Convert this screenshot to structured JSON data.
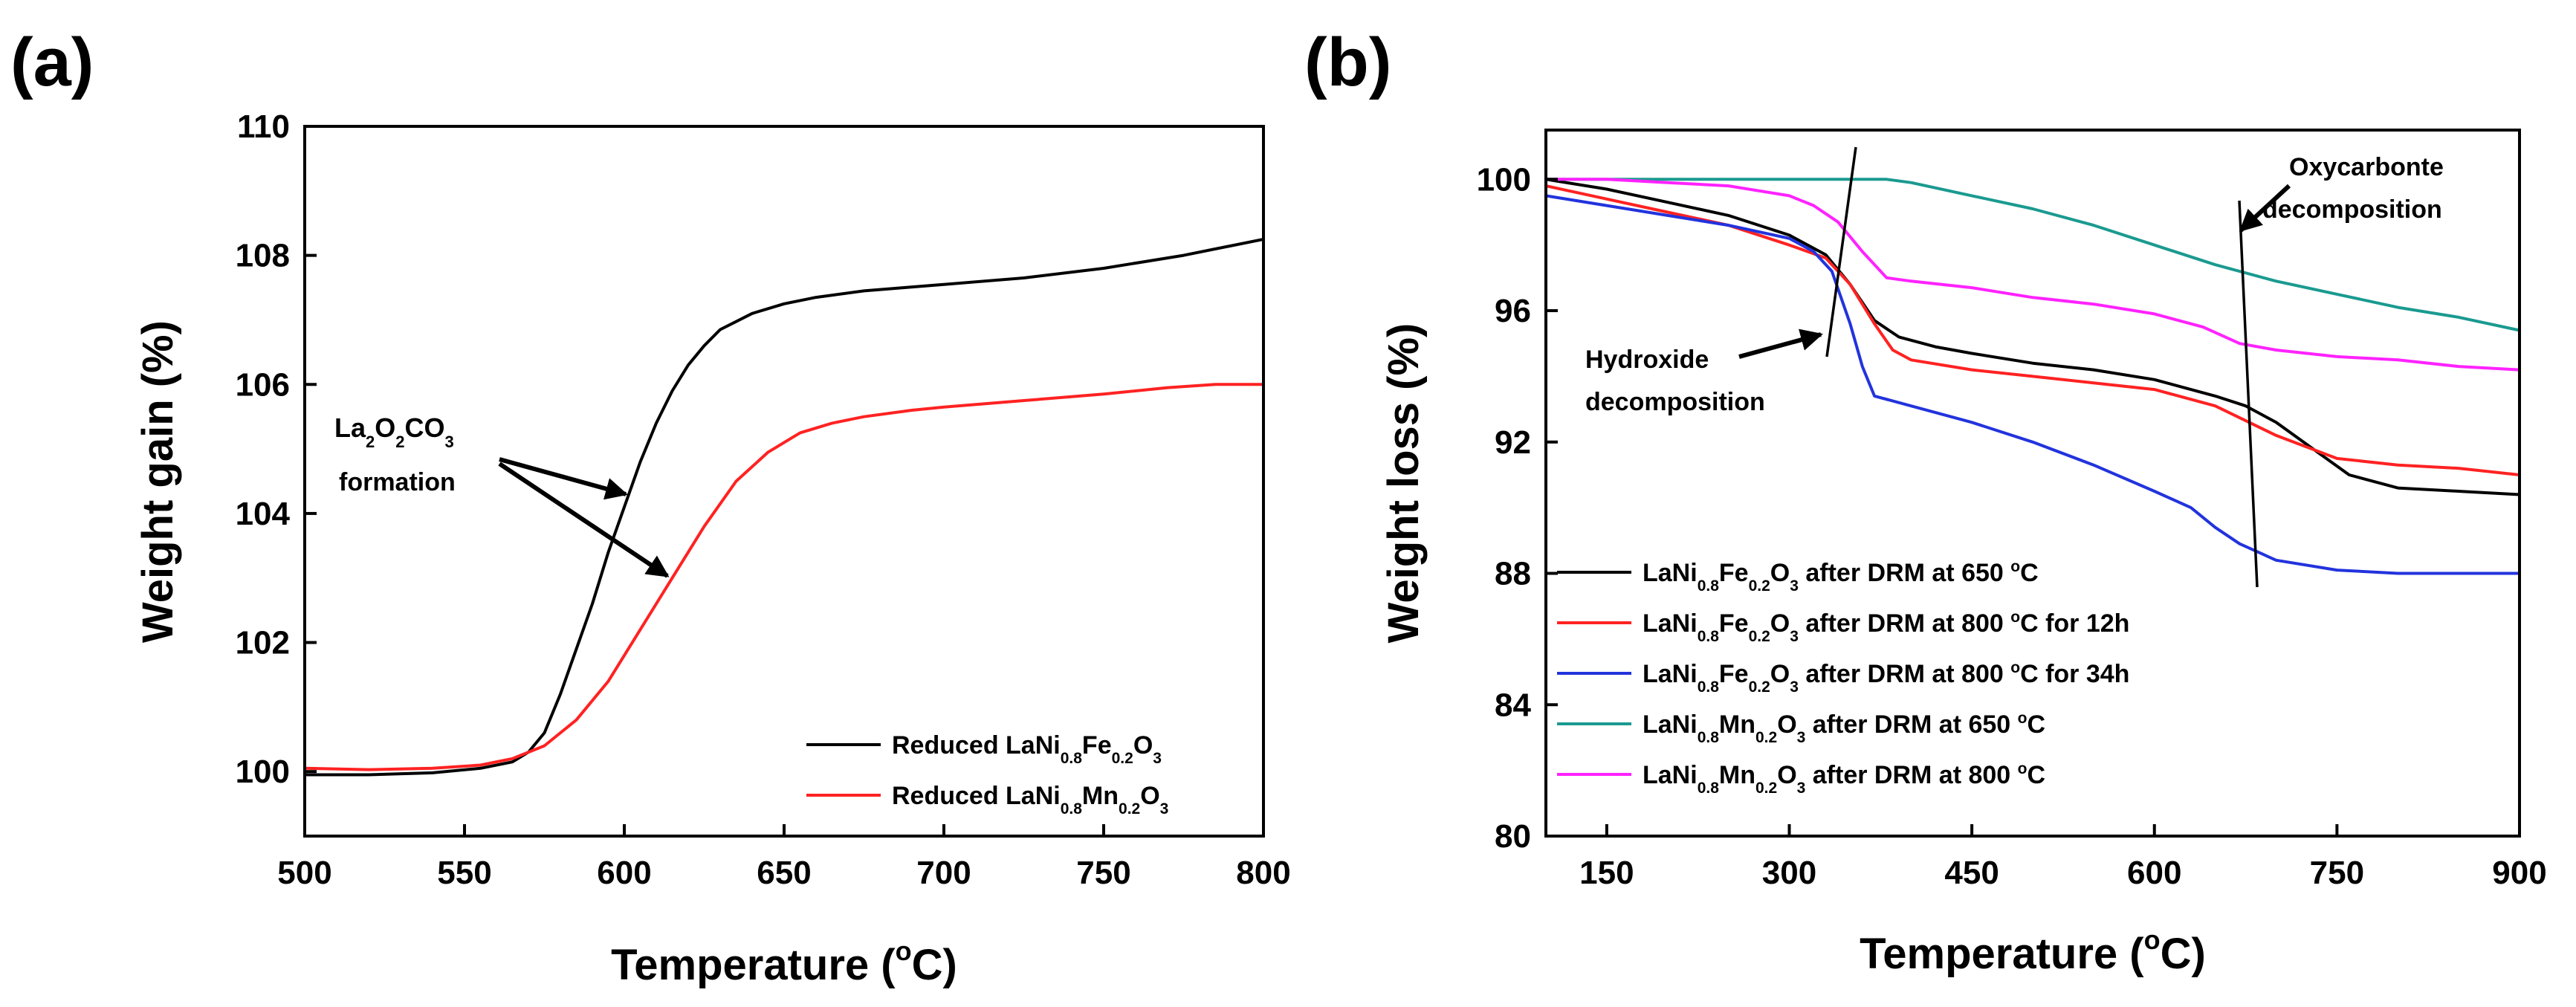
{
  "chart_data": [
    {
      "panel": "(a)",
      "type": "line",
      "xlabel": "Temperature (°C)",
      "xlabel_parts": {
        "pre": "Temperature (",
        "sup": "o",
        "post": "C)"
      },
      "ylabel": "Weight gain (%)",
      "xlim": [
        500,
        800
      ],
      "ylim": [
        99,
        110
      ],
      "xticks": [
        500,
        550,
        600,
        650,
        700,
        750,
        800
      ],
      "yticks": [
        100,
        102,
        104,
        106,
        108,
        110
      ],
      "legend_position": "bottom-right",
      "series": [
        {
          "name": "Reduced LaNi0.8Fe0.2O3",
          "label_parts": [
            {
              "t": "Reduced LaNi"
            },
            {
              "s": "0.8"
            },
            {
              "t": "Fe"
            },
            {
              "s": "0.2"
            },
            {
              "t": "O"
            },
            {
              "s": "3"
            }
          ],
          "color": "#000000",
          "x": [
            500,
            520,
            540,
            555,
            565,
            570,
            575,
            580,
            585,
            590,
            595,
            600,
            605,
            610,
            615,
            620,
            625,
            630,
            640,
            650,
            660,
            675,
            700,
            725,
            750,
            775,
            800
          ],
          "y": [
            99.95,
            99.95,
            99.98,
            100.05,
            100.15,
            100.3,
            100.6,
            101.2,
            101.9,
            102.6,
            103.4,
            104.1,
            104.8,
            105.4,
            105.9,
            106.3,
            106.6,
            106.85,
            107.1,
            107.25,
            107.35,
            107.45,
            107.55,
            107.65,
            107.8,
            108.0,
            108.25
          ]
        },
        {
          "name": "Reduced LaNi0.8Mn0.2O3",
          "label_parts": [
            {
              "t": "Reduced LaNi"
            },
            {
              "s": "0.8"
            },
            {
              "t": "Mn"
            },
            {
              "s": "0.2"
            },
            {
              "t": "O"
            },
            {
              "s": "3"
            }
          ],
          "color": "#ff2222",
          "x": [
            500,
            520,
            540,
            555,
            565,
            575,
            585,
            595,
            605,
            615,
            625,
            635,
            645,
            655,
            665,
            675,
            690,
            700,
            725,
            750,
            770,
            785,
            800
          ],
          "y": [
            100.05,
            100.03,
            100.05,
            100.1,
            100.2,
            100.4,
            100.8,
            101.4,
            102.2,
            103.0,
            103.8,
            104.5,
            104.95,
            105.25,
            105.4,
            105.5,
            105.6,
            105.65,
            105.75,
            105.85,
            105.95,
            106.0,
            106.0
          ]
        }
      ],
      "annotations": [
        {
          "text_parts": [
            {
              "t": "La"
            },
            {
              "s": "2"
            },
            {
              "t": "O"
            },
            {
              "s": "2"
            },
            {
              "t": "CO"
            },
            {
              "s": "3"
            }
          ],
          "text": "La2O2CO3"
        },
        {
          "text": "formation"
        }
      ]
    },
    {
      "panel": "(b)",
      "type": "line",
      "xlabel": "Temperature (°C)",
      "xlabel_parts": {
        "pre": "Temperature (",
        "sup": "o",
        "post": "C)"
      },
      "ylabel": "Weight loss (%)",
      "xlim": [
        100,
        900
      ],
      "ylim": [
        80,
        101.5
      ],
      "xticks": [
        150,
        300,
        450,
        600,
        750,
        900
      ],
      "yticks": [
        80,
        84,
        88,
        92,
        96,
        100
      ],
      "legend_position": "bottom-left",
      "series": [
        {
          "name": "LaNi0.8Fe0.2O3 after DRM at 650 °C",
          "label_parts": [
            {
              "t": "LaNi"
            },
            {
              "s": "0.8"
            },
            {
              "t": "Fe"
            },
            {
              "s": "0.2"
            },
            {
              "t": "O"
            },
            {
              "s": "3"
            },
            {
              "t": " after DRM at 650 "
            },
            {
              "u": "o"
            },
            {
              "t": "C"
            }
          ],
          "color": "#000000",
          "x": [
            100,
            150,
            200,
            250,
            300,
            330,
            350,
            370,
            390,
            420,
            450,
            500,
            550,
            600,
            650,
            675,
            700,
            730,
            760,
            800,
            850,
            900
          ],
          "y": [
            100,
            99.7,
            99.3,
            98.9,
            98.3,
            97.7,
            96.8,
            95.7,
            95.2,
            94.9,
            94.7,
            94.4,
            94.2,
            93.9,
            93.4,
            93.1,
            92.6,
            91.8,
            91.0,
            90.6,
            90.5,
            90.4
          ]
        },
        {
          "name": "LaNi0.8Fe0.2O3 after DRM at 800 °C for 12h",
          "label_parts": [
            {
              "t": "LaNi"
            },
            {
              "s": "0.8"
            },
            {
              "t": "Fe"
            },
            {
              "s": "0.2"
            },
            {
              "t": "O"
            },
            {
              "s": "3"
            },
            {
              "t": " after DRM at 800 "
            },
            {
              "u": "o"
            },
            {
              "t": "C for 12h"
            }
          ],
          "color": "#ff2222",
          "x": [
            100,
            150,
            200,
            250,
            300,
            330,
            350,
            370,
            385,
            400,
            450,
            500,
            550,
            600,
            650,
            700,
            750,
            800,
            850,
            900
          ],
          "y": [
            99.8,
            99.4,
            99.0,
            98.6,
            98.0,
            97.6,
            96.8,
            95.6,
            94.8,
            94.5,
            94.2,
            94.0,
            93.8,
            93.6,
            93.1,
            92.2,
            91.5,
            91.3,
            91.2,
            91.0
          ]
        },
        {
          "name": "LaNi0.8Fe0.2O3 after DRM at 800 °C for 34h",
          "label_parts": [
            {
              "t": "LaNi"
            },
            {
              "s": "0.8"
            },
            {
              "t": "Fe"
            },
            {
              "s": "0.2"
            },
            {
              "t": "O"
            },
            {
              "s": "3"
            },
            {
              "t": " after DRM at 800 "
            },
            {
              "u": "o"
            },
            {
              "t": "C for 34h"
            }
          ],
          "color": "#2233dd",
          "x": [
            100,
            150,
            200,
            250,
            300,
            320,
            335,
            350,
            360,
            370,
            400,
            450,
            500,
            550,
            600,
            630,
            650,
            670,
            700,
            750,
            800,
            850,
            900
          ],
          "y": [
            99.5,
            99.2,
            98.9,
            98.6,
            98.2,
            97.8,
            97.2,
            95.6,
            94.3,
            93.4,
            93.1,
            92.6,
            92.0,
            91.3,
            90.5,
            90.0,
            89.4,
            88.9,
            88.4,
            88.1,
            88.0,
            88.0,
            88.0
          ]
        },
        {
          "name": "LaNi0.8Mn0.2O3 after DRM at 650 °C",
          "label_parts": [
            {
              "t": "LaNi"
            },
            {
              "s": "0.8"
            },
            {
              "t": "Mn"
            },
            {
              "s": "0.2"
            },
            {
              "t": "O"
            },
            {
              "s": "3"
            },
            {
              "t": " after DRM at 650 "
            },
            {
              "u": "o"
            },
            {
              "t": "C"
            }
          ],
          "color": "#1a9a90",
          "x": [
            100,
            200,
            300,
            350,
            380,
            400,
            450,
            500,
            550,
            600,
            650,
            700,
            750,
            800,
            850,
            900
          ],
          "y": [
            100,
            100,
            100,
            100,
            100,
            99.9,
            99.5,
            99.1,
            98.6,
            98.0,
            97.4,
            96.9,
            96.5,
            96.1,
            95.8,
            95.4
          ]
        },
        {
          "name": "LaNi0.8Mn0.2O3 after DRM at 800 °C",
          "label_parts": [
            {
              "t": "LaNi"
            },
            {
              "s": "0.8"
            },
            {
              "t": "Mn"
            },
            {
              "s": "0.2"
            },
            {
              "t": "O"
            },
            {
              "s": "3"
            },
            {
              "t": " after DRM at 800 "
            },
            {
              "u": "o"
            },
            {
              "t": "C"
            }
          ],
          "color": "#ff22ff",
          "x": [
            100,
            150,
            200,
            250,
            300,
            320,
            340,
            360,
            380,
            400,
            450,
            500,
            550,
            600,
            640,
            670,
            700,
            750,
            800,
            850,
            900
          ],
          "y": [
            100,
            100,
            99.9,
            99.8,
            99.5,
            99.2,
            98.7,
            97.8,
            97.0,
            96.9,
            96.7,
            96.4,
            96.2,
            95.9,
            95.5,
            95.0,
            94.8,
            94.6,
            94.5,
            94.3,
            94.2
          ]
        }
      ],
      "annotations": [
        {
          "text": "Hydroxide"
        },
        {
          "text": "decomposition"
        },
        {
          "text": "Oxycarbonte"
        },
        {
          "text": "decomposition"
        }
      ]
    }
  ]
}
